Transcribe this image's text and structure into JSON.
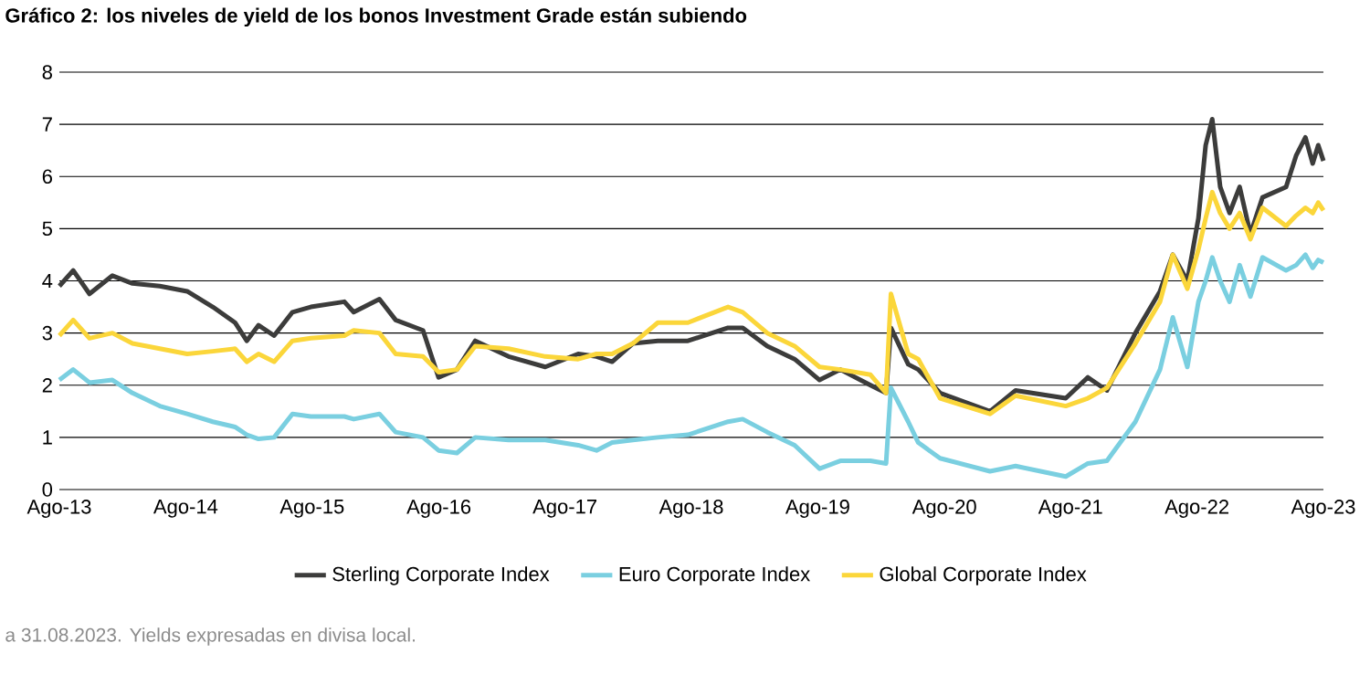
{
  "chart_data": {
    "type": "line",
    "title": "Gráfico 2: los niveles de yield de los bonos Investment Grade están subiendo",
    "x": [
      "2013-08-31",
      "2013-10-10",
      "2013-11-26",
      "2014-01-31",
      "2014-03-30",
      "2014-06-17",
      "2014-09-04",
      "2014-11-17",
      "2015-01-20",
      "2015-02-23",
      "2015-03-29",
      "2015-05-13",
      "2015-07-05",
      "2015-08-27",
      "2015-12-02",
      "2015-12-29",
      "2016-03-12",
      "2016-04-28",
      "2016-07-16",
      "2016-08-30",
      "2016-10-22",
      "2016-12-14",
      "2017-03-21",
      "2017-07-05",
      "2017-10-08",
      "2017-11-30",
      "2018-01-14",
      "2018-03-15",
      "2018-05-26",
      "2018-08-21",
      "2018-12-15",
      "2019-01-26",
      "2019-04-07",
      "2019-06-25",
      "2019-09-05",
      "2019-11-04",
      "2020-01-30",
      "2020-03-15",
      "2020-03-29",
      "2020-05-18",
      "2020-06-16",
      "2020-08-18",
      "2021-01-10",
      "2021-03-25",
      "2021-08-17",
      "2021-10-20",
      "2021-12-14",
      "2022-03-06",
      "2022-05-16",
      "2022-06-22",
      "2022-08-03",
      "2022-09-04",
      "2022-09-25",
      "2022-10-14",
      "2022-11-06",
      "2022-12-03",
      "2023-01-01",
      "2023-02-01",
      "2023-03-08",
      "2023-05-15",
      "2023-06-13",
      "2023-07-10",
      "2023-07-31",
      "2023-08-16",
      "2023-08-31"
    ],
    "series": [
      {
        "name": "Sterling Corporate Index",
        "color": "#3c3c3b",
        "values": [
          3.9,
          4.2,
          3.75,
          4.1,
          3.95,
          3.9,
          3.8,
          3.5,
          3.2,
          2.85,
          3.15,
          2.95,
          3.4,
          3.5,
          3.6,
          3.4,
          3.65,
          3.25,
          3.05,
          2.15,
          2.3,
          2.85,
          2.55,
          2.35,
          2.6,
          2.55,
          2.45,
          2.8,
          2.85,
          2.85,
          3.1,
          3.1,
          2.75,
          2.5,
          2.1,
          2.3,
          2.0,
          1.85,
          3.1,
          2.4,
          2.3,
          1.85,
          1.5,
          1.9,
          1.75,
          2.15,
          1.9,
          3.0,
          3.8,
          4.5,
          4.0,
          5.2,
          6.6,
          7.1,
          5.8,
          5.3,
          5.8,
          4.9,
          5.6,
          5.8,
          6.4,
          6.75,
          6.25,
          6.6,
          6.3
        ]
      },
      {
        "name": "Euro Corporate Index",
        "color": "#7acfe0",
        "values": [
          2.1,
          2.3,
          2.05,
          2.1,
          1.85,
          1.6,
          1.45,
          1.3,
          1.2,
          1.05,
          0.97,
          1.0,
          1.45,
          1.4,
          1.4,
          1.35,
          1.45,
          1.1,
          1.0,
          0.75,
          0.7,
          1.0,
          0.95,
          0.95,
          0.85,
          0.75,
          0.9,
          0.95,
          1.0,
          1.05,
          1.3,
          1.35,
          1.1,
          0.85,
          0.4,
          0.55,
          0.55,
          0.5,
          1.95,
          1.3,
          0.9,
          0.6,
          0.35,
          0.45,
          0.25,
          0.5,
          0.55,
          1.3,
          2.3,
          3.3,
          2.35,
          3.6,
          4.0,
          4.45,
          4.0,
          3.6,
          4.3,
          3.7,
          4.45,
          4.2,
          4.3,
          4.5,
          4.25,
          4.4,
          4.35
        ]
      },
      {
        "name": "Global Corporate Index",
        "color": "#fbd63a",
        "values": [
          2.95,
          3.25,
          2.9,
          3.0,
          2.8,
          2.7,
          2.6,
          2.65,
          2.7,
          2.45,
          2.6,
          2.45,
          2.85,
          2.9,
          2.95,
          3.05,
          3.0,
          2.6,
          2.55,
          2.25,
          2.3,
          2.75,
          2.7,
          2.55,
          2.5,
          2.6,
          2.6,
          2.8,
          3.2,
          3.2,
          3.5,
          3.4,
          3.0,
          2.75,
          2.35,
          2.3,
          2.2,
          1.85,
          3.75,
          2.6,
          2.5,
          1.75,
          1.45,
          1.8,
          1.6,
          1.75,
          1.95,
          2.8,
          3.6,
          4.5,
          3.85,
          4.6,
          5.2,
          5.7,
          5.3,
          5.0,
          5.3,
          4.8,
          5.4,
          5.05,
          5.25,
          5.4,
          5.3,
          5.5,
          5.35
        ]
      }
    ],
    "xlim": [
      "2013-08-31",
      "2023-08-31"
    ],
    "xticks": [
      {
        "value": "2013-08-31",
        "label": "Ago-13"
      },
      {
        "value": "2014-08-31",
        "label": "Ago-14"
      },
      {
        "value": "2015-08-31",
        "label": "Ago-15"
      },
      {
        "value": "2016-08-31",
        "label": "Ago-16"
      },
      {
        "value": "2017-08-31",
        "label": "Ago-17"
      },
      {
        "value": "2018-08-31",
        "label": "Ago-18"
      },
      {
        "value": "2019-08-31",
        "label": "Ago-19"
      },
      {
        "value": "2020-08-31",
        "label": "Ago-20"
      },
      {
        "value": "2021-08-31",
        "label": "Ago-21"
      },
      {
        "value": "2022-08-31",
        "label": "Ago-22"
      },
      {
        "value": "2023-08-31",
        "label": "Ago-23"
      }
    ],
    "ylim": [
      0,
      8
    ],
    "yticks": [
      0,
      1,
      2,
      3,
      4,
      5,
      6,
      7,
      8
    ],
    "grid": "y",
    "legend": "bottom",
    "annotations": [
      "a 31.08.2023. Yields expresadas en divisa local."
    ]
  }
}
